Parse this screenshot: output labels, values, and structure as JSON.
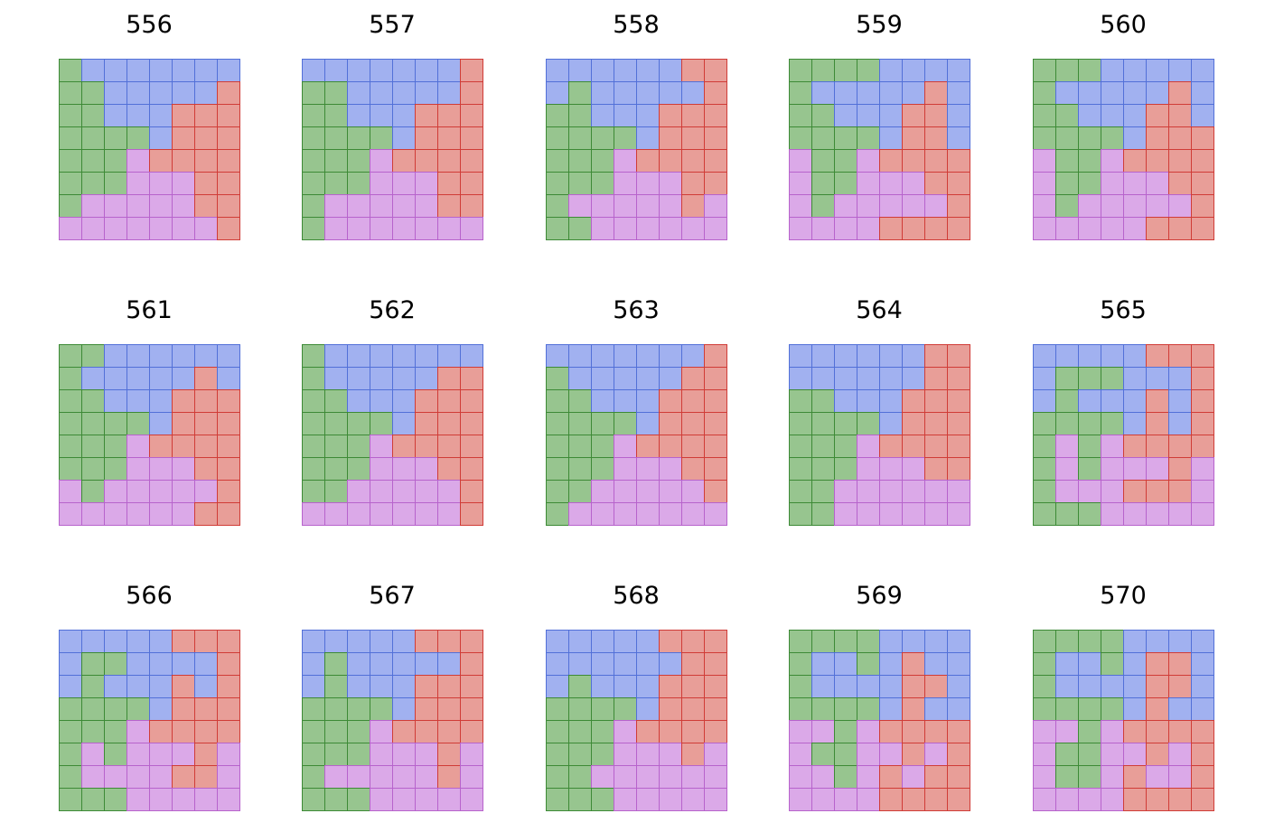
{
  "colors": {
    "B": {
      "fill": "#a1b1f0",
      "stroke": "#5270d8"
    },
    "G": {
      "fill": "#97c58f",
      "stroke": "#3d8a36"
    },
    "R": {
      "fill": "#e89e98",
      "stroke": "#d03c37"
    },
    "P": {
      "fill": "#dba9e8",
      "stroke": "#b763cc"
    }
  },
  "panels": [
    {
      "title": "556",
      "grid": [
        "GBBBBBBB",
        "GGBBBBBR",
        "GGBBBRRR",
        "GGGGBRRR",
        "GGGPRRRR",
        "GGGPPPRR",
        "GPPPPPRR",
        "PPPPPPPR"
      ]
    },
    {
      "title": "557",
      "grid": [
        "BBBBBBBR",
        "GGBBBBBR",
        "GGBBBRRR",
        "GGGGBRRR",
        "GGGPRRRR",
        "GGGPPPRR",
        "GPPPPPRR",
        "GPPPPPPP"
      ]
    },
    {
      "title": "558",
      "grid": [
        "BBBBBBRR",
        "BGBBBBBR",
        "GGBBBRRR",
        "GGGGBRRR",
        "GGGPRRRR",
        "GGGPPPRR",
        "GPPPPPRP",
        "GGPPPPPP"
      ]
    },
    {
      "title": "559",
      "grid": [
        "GGGGBBBB",
        "GBBBBBRB",
        "GGBBBRRB",
        "GGGGBRRB",
        "PGGPRRRR",
        "PGGPPPRR",
        "PGPPPPPR",
        "PPPPRRRR"
      ]
    },
    {
      "title": "560",
      "grid": [
        "GGGBBBBB",
        "GBBBBBRB",
        "GGBBBRRB",
        "GGGGBRRR",
        "PGGPRRRR",
        "PGGPPPRR",
        "PGPPPPPR",
        "PPPPPRRR"
      ]
    },
    {
      "title": "561",
      "grid": [
        "GGBBBBBB",
        "GBBBBBRB",
        "GGBBBRRR",
        "GGGGBRRR",
        "GGGPRRRR",
        "GGGPPPRR",
        "PGPPPPPR",
        "PPPPPPRR"
      ]
    },
    {
      "title": "562",
      "grid": [
        "GBBBBBBB",
        "GBBBBBRR",
        "GGBBBRRR",
        "GGGGBRRR",
        "GGGPRRRR",
        "GGGPPPRR",
        "GGPPPPPR",
        "PPPPPPPR"
      ]
    },
    {
      "title": "563",
      "grid": [
        "BBBBBBBR",
        "GBBBBBRR",
        "GGBBBRRR",
        "GGGGBRRR",
        "GGGPRRRR",
        "GGGPPPRR",
        "GGPPPPPR",
        "GPPPPPPP"
      ]
    },
    {
      "title": "564",
      "grid": [
        "BBBBBBRR",
        "BBBBBBRR",
        "GGBBBRRR",
        "GGGGBRRR",
        "GGGPRRRR",
        "GGGPPPRR",
        "GGPPPPPP",
        "GGPPPPPP"
      ]
    },
    {
      "title": "565",
      "grid": [
        "BBBBBRRR",
        "BGGGBBBR",
        "BGBBBRBR",
        "GGGGBRBR",
        "GPGPRRRR",
        "GPGPPPRP",
        "GPPPRRRP",
        "GGGPPPPP"
      ]
    },
    {
      "title": "566",
      "grid": [
        "BBBBBRRR",
        "BGGBBBBR",
        "BGBBBRBR",
        "GGGGBRRR",
        "GGGPRRRR",
        "GPGPPPRP",
        "GPPPPRRP",
        "GGGPPPPP"
      ]
    },
    {
      "title": "567",
      "grid": [
        "BBBBBRRR",
        "BGBBBBBR",
        "BGBBBRRR",
        "GGGGBRRR",
        "GGGPRRRR",
        "GGGPPPRP",
        "GPPPPPRP",
        "GGGPPPPP"
      ]
    },
    {
      "title": "568",
      "grid": [
        "BBBBBRRR",
        "BBBBBBRR",
        "BGBBBRRR",
        "GGGGBRRR",
        "GGGPRRRR",
        "GGGPPPRP",
        "GGPPPPPP",
        "GGGPPPPP"
      ]
    },
    {
      "title": "569",
      "grid": [
        "GGGGBBBB",
        "GBBGBRBB",
        "GBBBBRRB",
        "GGGGBRBB",
        "PPGPRRRR",
        "PGGPPRPR",
        "PPGPRPRR",
        "PPPPRRRR"
      ]
    },
    {
      "title": "570",
      "grid": [
        "GGGGBBBB",
        "GBBGBRRB",
        "GBBBBRRB",
        "GGGGBRBB",
        "PPGPRRRR",
        "PGGPPRPR",
        "PGGPRPPR",
        "PPPPRRRR"
      ]
    }
  ]
}
